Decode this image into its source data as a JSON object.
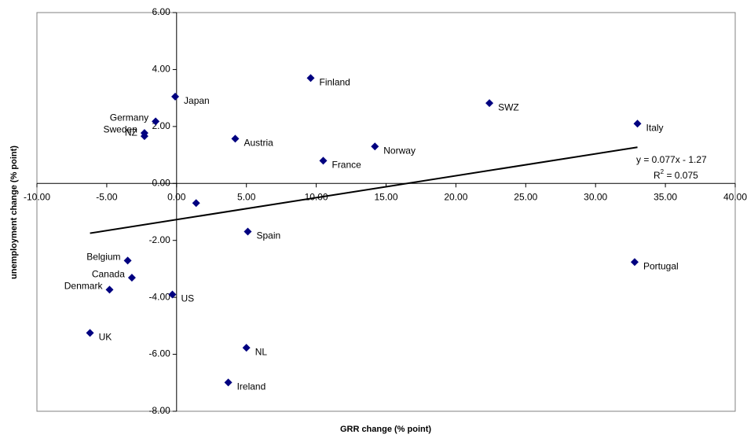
{
  "chart_data": {
    "type": "scatter",
    "x_label": "GRR change (% point)",
    "y_label": "unemployment change (% point)",
    "xlim": [
      -10,
      40
    ],
    "ylim": [
      -8,
      6
    ],
    "xticks": [
      {
        "value": -10,
        "label": "-10.00"
      },
      {
        "value": -5,
        "label": "-5.00"
      },
      {
        "value": 0,
        "label": "0.00"
      },
      {
        "value": 5,
        "label": "5.00"
      },
      {
        "value": 10,
        "label": "10.00"
      },
      {
        "value": 15,
        "label": "15.00"
      },
      {
        "value": 20,
        "label": "20.00"
      },
      {
        "value": 25,
        "label": "25.00"
      },
      {
        "value": 30,
        "label": "30.00"
      },
      {
        "value": 35,
        "label": "35.00"
      },
      {
        "value": 40,
        "label": "40.00"
      }
    ],
    "yticks": [
      {
        "value": -8,
        "label": "-8.00"
      },
      {
        "value": -6,
        "label": "-6.00"
      },
      {
        "value": -4,
        "label": "-4.00"
      },
      {
        "value": -2,
        "label": "-2.00"
      },
      {
        "value": 0,
        "label": "0.00"
      },
      {
        "value": 2,
        "label": "2.00"
      },
      {
        "value": 4,
        "label": "4.00"
      },
      {
        "value": 6,
        "label": "6.00"
      }
    ],
    "series": [
      {
        "color": "#000080",
        "labels": [
          "Finland",
          "Japan",
          "Germany",
          "Sweden",
          "NZ",
          "Austria",
          "France",
          "Norway",
          "SWZ",
          "Italy",
          null,
          "Spain",
          "Portugal",
          "Belgium",
          "Canada",
          "Denmark",
          "US",
          "UK",
          "NL",
          "Ireland"
        ],
        "x": [
          9.6,
          -0.1,
          -1.5,
          -2.3,
          -2.3,
          4.2,
          10.5,
          14.2,
          22.4,
          33.0,
          1.4,
          5.1,
          32.8,
          -3.5,
          -3.2,
          -4.8,
          -0.3,
          -6.2,
          5.0,
          3.7
        ],
        "values": [
          3.7,
          3.05,
          2.18,
          1.77,
          1.66,
          1.57,
          0.8,
          1.3,
          2.82,
          2.1,
          -0.69,
          -1.69,
          -2.76,
          -2.71,
          -3.31,
          -3.73,
          -3.9,
          -5.25,
          -5.77,
          -6.99
        ]
      }
    ],
    "trendline": {
      "slope": 0.077,
      "intercept": -1.27,
      "equation": "y = 0.077x - 1.27",
      "r2": {
        "base": "R",
        "sup": "2",
        "text": " = 0.075"
      }
    }
  }
}
